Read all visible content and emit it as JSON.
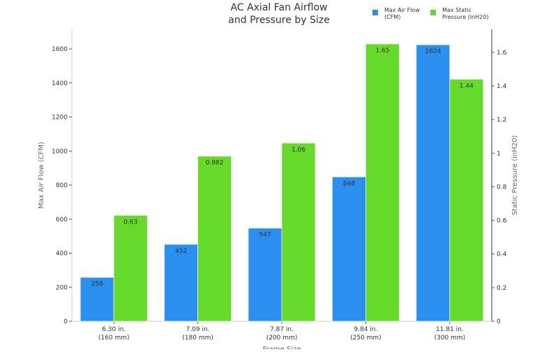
{
  "chart_data": {
    "type": "bar",
    "title": "AC Axial Fan Airflow\nand Pressure by Size",
    "xlabel": "Frame Size",
    "ylabel": "Max Air Flow (CFM)",
    "y2label": "Static Pressure (inH20)",
    "categories": [
      "6.30 in.\n(160 mm)",
      "7.09 in.\n(180 mm)",
      "7.87 in.\n(200 mm)",
      "9.84 in.\n(250 mm)",
      "11.81 in.\n(300 mm)"
    ],
    "series": [
      {
        "name": "Max Air Flow\n(CFM)",
        "axis": "left",
        "color": "#2b8ff0",
        "values": [
          258,
          452,
          547,
          848,
          1624
        ],
        "labels": [
          "258",
          "452",
          "547",
          "848",
          "1624"
        ]
      },
      {
        "name": "Max Static\nPressure (inH20)",
        "axis": "right",
        "color": "#66d92a",
        "values": [
          0.63,
          0.982,
          1.06,
          1.65,
          1.44
        ],
        "labels": [
          "0.63",
          "0.982",
          "1.06",
          "1.65",
          "1.44"
        ]
      }
    ],
    "ylim": [
      0,
      1715
    ],
    "y2lim": [
      0,
      1.737
    ],
    "yticks": [
      0,
      200,
      400,
      600,
      800,
      1000,
      1200,
      1400,
      1600
    ],
    "y2ticks": [
      "0",
      "0.2",
      "0.4",
      "0.6",
      "0.8",
      "1",
      "1.2",
      "1.4",
      "1.6"
    ],
    "grid": false,
    "legend": "top-right"
  }
}
